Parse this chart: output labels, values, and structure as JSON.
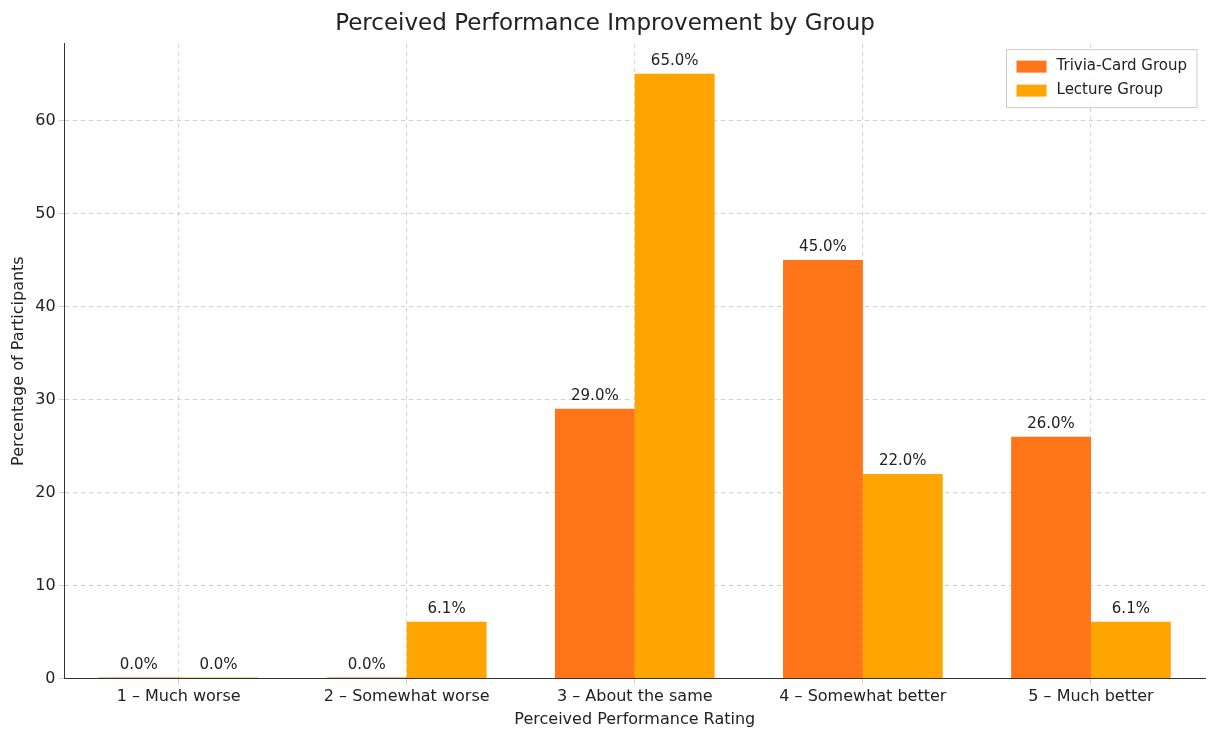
{
  "chart_data": {
    "type": "bar",
    "title": "Perceived Performance Improvement by Group",
    "xlabel": "Perceived Performance Rating",
    "ylabel": "Percentage of Participants",
    "categories": [
      "1 – Much worse",
      "2 – Somewhat worse",
      "3 – About the same",
      "4 – Somewhat better",
      "5 – Much better"
    ],
    "series": [
      {
        "name": "Trivia-Card Group",
        "color": "#ff7518",
        "values": [
          0,
          0,
          29,
          45,
          26
        ],
        "value_labels": [
          "0.0%",
          "0.0%",
          "29.0%",
          "45.0%",
          "26.0%"
        ]
      },
      {
        "name": "Lecture Group",
        "color": "#ffa500",
        "values": [
          0,
          6.1,
          65,
          22,
          6.1
        ],
        "value_labels": [
          "0.0%",
          "6.1%",
          "65.0%",
          "22.0%",
          "6.1%"
        ]
      }
    ],
    "ylim": [
      0,
      68.25
    ],
    "yticks": [
      0,
      10,
      20,
      30,
      40,
      50,
      60
    ],
    "grid": true,
    "legend": "top right"
  }
}
